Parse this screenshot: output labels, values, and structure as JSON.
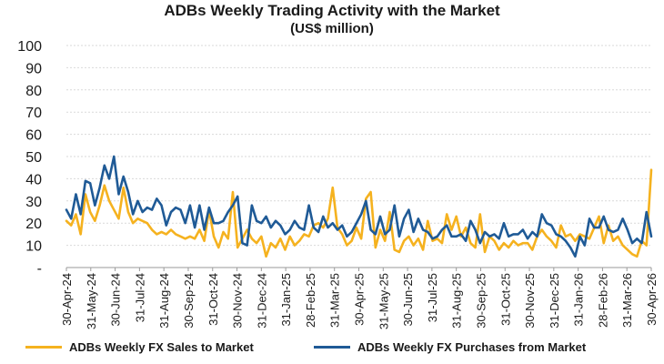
{
  "chart_data": {
    "type": "line",
    "title": "ADBs Weekly Trading Activity with the Market",
    "subtitle": "(US$ million)",
    "ylim": [
      0,
      100
    ],
    "yticks": [
      "-",
      "10",
      "20",
      "30",
      "40",
      "50",
      "60",
      "70",
      "80",
      "90",
      "100"
    ],
    "x_tick_labels": [
      "30-Apr-24",
      "31-May-24",
      "30-Jun-24",
      "31-Jul-24",
      "31-Aug-24",
      "30-Sep-24",
      "31-Oct-24",
      "30-Nov-24",
      "31-Dec-24",
      "31-Jan-25",
      "28-Feb-25",
      "31-Mar-25",
      "30-Apr-25",
      "31-May-25",
      "30-Jun-25",
      "31-Jul-25",
      "31-Aug-25",
      "30-Sep-25",
      "31-Oct-25",
      "30-Nov-25",
      "31-Dec-25",
      "31-Jan-26",
      "28-Feb-26",
      "31-Mar-26",
      "30-Apr-26"
    ],
    "grid": "horizontal",
    "legend_position": "bottom",
    "series": [
      {
        "name": "ADBs Weekly FX Sales to Market",
        "color": "#F5B21F",
        "values": [
          21,
          19,
          24,
          15,
          33,
          25,
          21,
          28,
          37,
          30,
          26,
          22,
          36,
          25,
          20,
          22,
          21,
          20,
          17,
          15,
          16,
          15,
          17,
          15,
          14,
          13,
          14,
          13,
          17,
          12,
          26,
          14,
          9,
          16,
          13,
          34,
          9,
          13,
          17,
          13,
          11,
          14,
          5,
          11,
          9,
          13,
          8,
          14,
          10,
          12,
          15,
          14,
          19,
          20,
          18,
          22,
          36,
          18,
          15,
          10,
          12,
          18,
          13,
          31,
          34,
          9,
          17,
          12,
          25,
          8,
          7,
          12,
          14,
          10,
          13,
          8,
          21,
          12,
          13,
          11,
          24,
          17,
          23,
          14,
          18,
          11,
          9,
          24,
          7,
          14,
          12,
          8,
          11,
          9,
          12,
          10,
          11,
          11,
          8,
          14,
          17,
          14,
          12,
          9,
          19,
          14,
          15,
          12,
          15,
          14,
          13,
          18,
          23,
          11,
          19,
          12,
          14,
          10,
          8,
          6,
          5,
          12,
          10,
          44
        ]
      },
      {
        "name": "ADBs Weekly FX Purchases from Market",
        "color": "#1F5A96",
        "values": [
          26,
          22,
          33,
          24,
          39,
          38,
          28,
          36,
          46,
          40,
          50,
          33,
          41,
          34,
          24,
          30,
          25,
          27,
          26,
          31,
          28,
          19,
          25,
          27,
          26,
          20,
          28,
          18,
          28,
          17,
          27,
          20,
          20,
          21,
          25,
          28,
          32,
          11,
          10,
          28,
          21,
          20,
          23,
          18,
          21,
          19,
          15,
          17,
          21,
          18,
          17,
          28,
          18,
          16,
          23,
          18,
          20,
          17,
          19,
          14,
          16,
          20,
          24,
          30,
          17,
          15,
          23,
          15,
          17,
          28,
          14,
          22,
          26,
          16,
          22,
          17,
          16,
          13,
          14,
          17,
          19,
          14,
          14,
          15,
          12,
          21,
          17,
          11,
          16,
          14,
          15,
          13,
          20,
          14,
          15,
          15,
          17,
          13,
          16,
          14,
          24,
          20,
          19,
          15,
          14,
          12,
          9,
          5,
          14,
          10,
          22,
          18,
          18,
          23,
          17,
          16,
          17,
          22,
          17,
          11,
          13,
          11,
          25,
          14
        ]
      }
    ]
  }
}
